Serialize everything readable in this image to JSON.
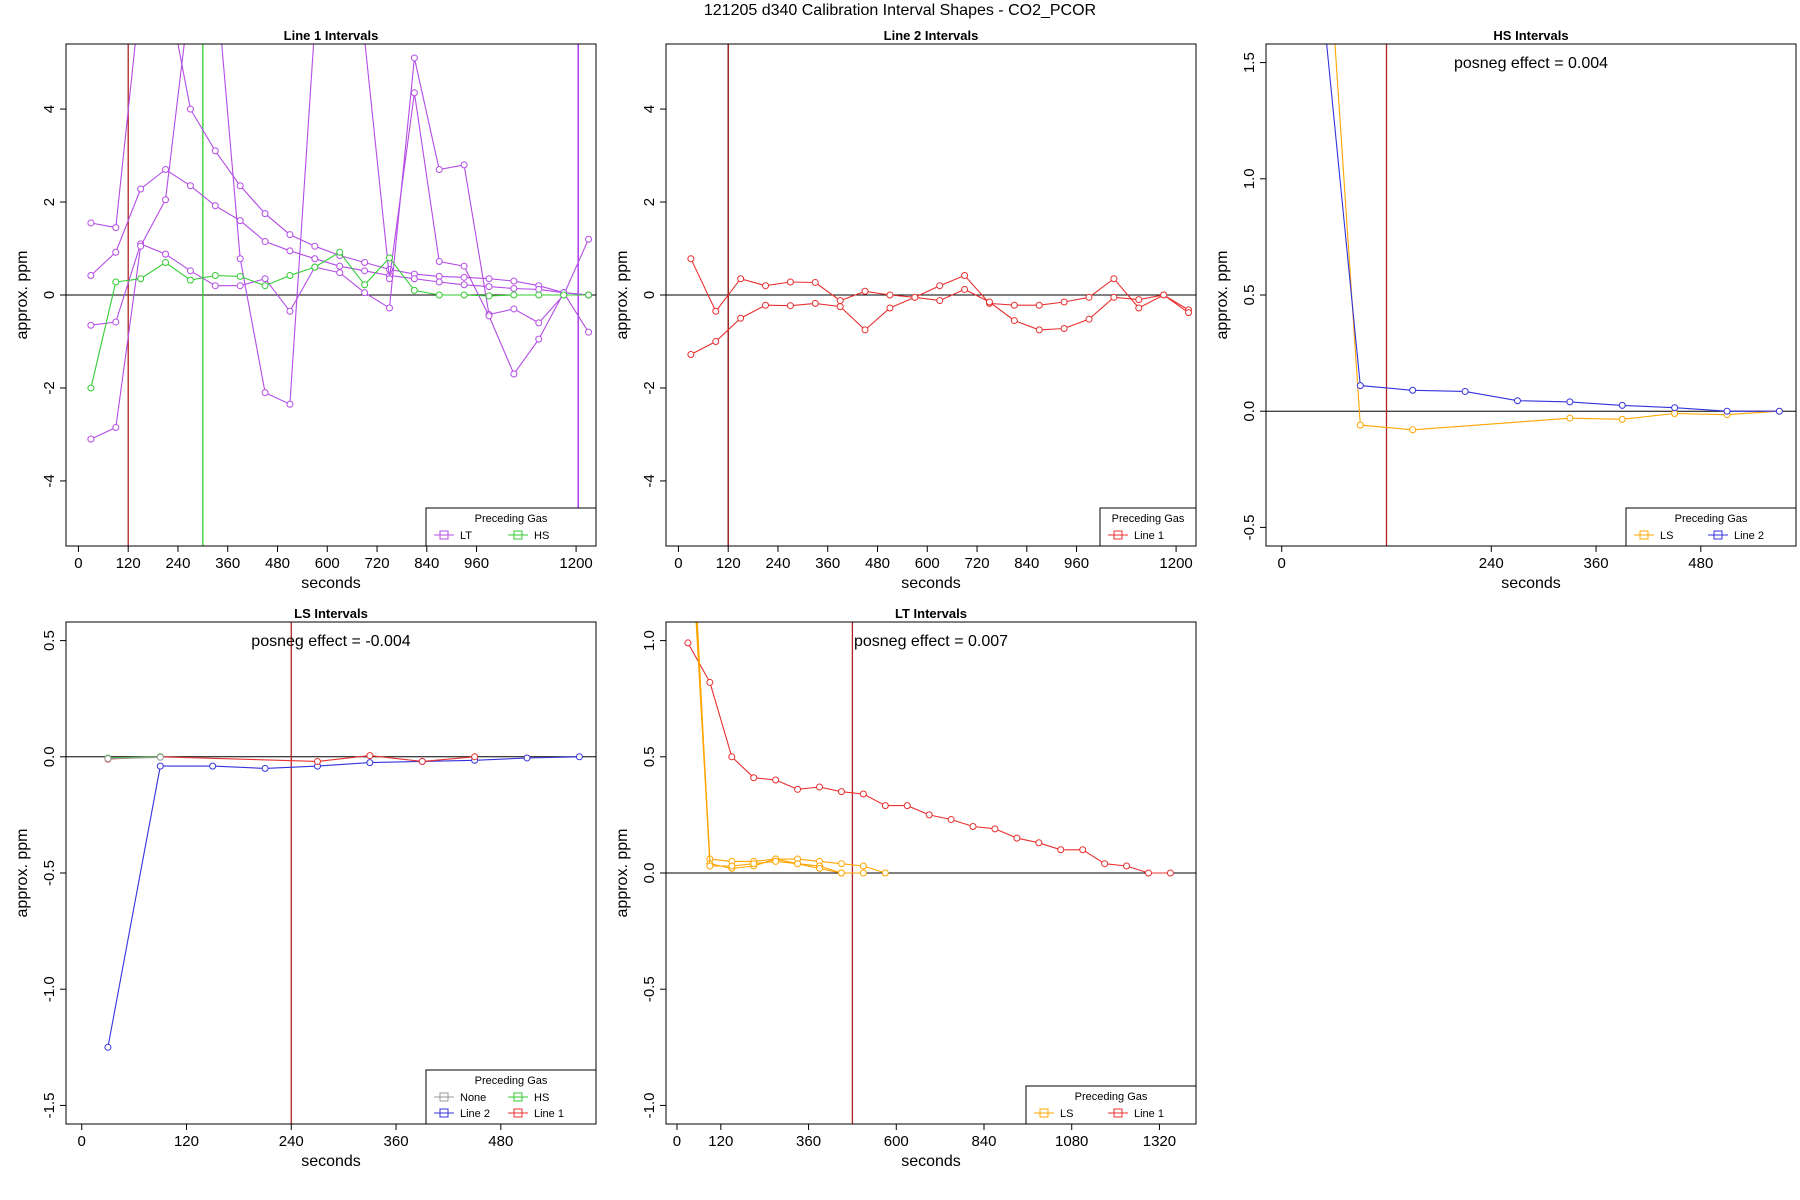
{
  "title": "121205  d340   Calibration Interval Shapes - CO2_PCOR",
  "chart_data": [
    {
      "type": "line",
      "title": "Line 1 Intervals",
      "xlabel": "seconds",
      "ylabel": "approx. ppm",
      "xlim": [
        -30,
        1248
      ],
      "ylim": [
        -5.4,
        5.4
      ],
      "xticks": [
        0,
        120,
        240,
        360,
        480,
        600,
        720,
        840,
        960,
        1200
      ],
      "xtick_labels": [
        "0",
        "120",
        "240",
        "360",
        "480",
        "600",
        "720",
        "840",
        "960",
        "1200"
      ],
      "yticks": [
        -4,
        -2,
        0,
        2,
        4
      ],
      "ytick_labels": [
        "-4",
        "-2",
        "0",
        "2",
        "4"
      ],
      "hline": 0,
      "vlines": [
        {
          "x": 120,
          "color": "#b22222"
        },
        {
          "x": 300,
          "color": "#33cc33"
        },
        {
          "x": 1205,
          "color": "#a020f0"
        }
      ],
      "legend": {
        "title": "Preceding Gas",
        "position": "bottom-right",
        "entries": [
          {
            "label": "LT",
            "color": "#b44ce6"
          },
          {
            "label": "HS",
            "color": "#33cc33"
          }
        ]
      },
      "series": [
        {
          "name": "LT",
          "color": "#b44ce6",
          "x": [
            30,
            90,
            150,
            210,
            270,
            330,
            390,
            450,
            510,
            570,
            630,
            690,
            750,
            810,
            870,
            930,
            990,
            1050,
            1110,
            1170,
            1230
          ],
          "y": [
            1.55,
            1.45,
            6.5,
            6.8,
            4.0,
            3.1,
            2.35,
            1.75,
            1.3,
            1.05,
            0.85,
            0.7,
            0.55,
            0.45,
            0.4,
            0.38,
            0.35,
            0.3,
            0.2,
            0.05,
            0.0
          ]
        },
        {
          "name": "LT",
          "color": "#b44ce6",
          "x": [
            30,
            90,
            150,
            210,
            270,
            330,
            390,
            450,
            510,
            570,
            630,
            690,
            750,
            810,
            870,
            930,
            990,
            1050,
            1110,
            1170,
            1230
          ],
          "y": [
            0.42,
            0.92,
            2.28,
            2.7,
            2.35,
            1.92,
            1.6,
            1.15,
            0.95,
            0.78,
            0.62,
            0.52,
            0.42,
            0.35,
            0.28,
            0.22,
            0.18,
            0.14,
            0.12,
            0.05,
            0.0
          ]
        },
        {
          "name": "LT",
          "color": "#b44ce6",
          "x": [
            30,
            90,
            150,
            210,
            270,
            330,
            390,
            450,
            510,
            570,
            630,
            690,
            750,
            810,
            870,
            930,
            990,
            1050,
            1110,
            1170,
            1230
          ],
          "y": [
            -0.65,
            -0.58,
            1.1,
            0.88,
            0.52,
            0.2,
            0.2,
            0.35,
            -0.35,
            0.6,
            0.48,
            0.05,
            -0.28,
            5.1,
            2.7,
            2.8,
            -0.42,
            -0.3,
            -0.6,
            0.0,
            1.2
          ]
        },
        {
          "name": "LT",
          "color": "#b44ce6",
          "x": [
            30,
            90,
            150,
            210,
            270,
            330,
            390,
            450,
            510,
            570,
            630,
            690,
            750,
            810,
            870,
            930,
            990,
            1050,
            1110,
            1170,
            1230
          ],
          "y": [
            -3.1,
            -2.85,
            1.05,
            2.05,
            6.5,
            7.0,
            0.78,
            -2.1,
            -2.35,
            5.8,
            6.5,
            5.5,
            0.35,
            4.35,
            0.72,
            0.62,
            -0.45,
            -1.7,
            -0.95,
            0.05,
            -0.8
          ]
        },
        {
          "name": "HS",
          "color": "#33cc33",
          "x": [
            30,
            90,
            150,
            210,
            270,
            330,
            390,
            450,
            510,
            570,
            630,
            690,
            750,
            810,
            870,
            930,
            990,
            1050,
            1110,
            1170,
            1230
          ],
          "y": [
            -2.0,
            0.28,
            0.35,
            0.7,
            0.32,
            0.42,
            0.4,
            0.2,
            0.42,
            0.6,
            0.92,
            0.22,
            0.8,
            0.1,
            0.0,
            0.0,
            -0.02,
            0.0,
            0.0,
            0.0,
            0.0
          ]
        }
      ]
    },
    {
      "type": "line",
      "title": "Line 2 Intervals",
      "xlabel": "seconds",
      "ylabel": "approx. ppm",
      "xlim": [
        -30,
        1248
      ],
      "ylim": [
        -5.4,
        5.4
      ],
      "xticks": [
        0,
        120,
        240,
        360,
        480,
        600,
        720,
        840,
        960,
        1200
      ],
      "xtick_labels": [
        "0",
        "120",
        "240",
        "360",
        "480",
        "600",
        "720",
        "840",
        "960",
        "1200"
      ],
      "yticks": [
        -4,
        -2,
        0,
        2,
        4
      ],
      "ytick_labels": [
        "-4",
        "-2",
        "0",
        "2",
        "4"
      ],
      "hline": 0,
      "vlines": [
        {
          "x": 120,
          "color": "#8b0000"
        }
      ],
      "legend": {
        "title": "Preceding Gas",
        "position": "bottom-right",
        "entries": [
          {
            "label": "Line 1",
            "color": "#e83030"
          }
        ]
      },
      "series": [
        {
          "name": "Line 1",
          "color": "#e83030",
          "x": [
            30,
            90,
            150,
            210,
            270,
            330,
            390,
            450,
            510,
            570,
            630,
            690,
            750,
            810,
            870,
            930,
            990,
            1050,
            1110,
            1170,
            1230
          ],
          "y": [
            0.78,
            -0.35,
            0.35,
            0.2,
            0.28,
            0.27,
            -0.12,
            0.08,
            0.0,
            -0.05,
            0.2,
            0.42,
            -0.18,
            -0.22,
            -0.22,
            -0.15,
            -0.05,
            0.35,
            -0.28,
            0.0,
            -0.32
          ]
        },
        {
          "name": "Line 1",
          "color": "#e83030",
          "x": [
            30,
            90,
            150,
            210,
            270,
            330,
            390,
            450,
            510,
            570,
            630,
            690,
            750,
            810,
            870,
            930,
            990,
            1050,
            1110,
            1170,
            1230
          ],
          "y": [
            -1.28,
            -1.0,
            -0.5,
            -0.22,
            -0.23,
            -0.18,
            -0.25,
            -0.75,
            -0.28,
            -0.05,
            -0.12,
            0.12,
            -0.15,
            -0.55,
            -0.75,
            -0.72,
            -0.52,
            -0.05,
            -0.1,
            -0.0,
            -0.38
          ]
        }
      ]
    },
    {
      "type": "line",
      "title": "HS Intervals",
      "xlabel": "seconds",
      "ylabel": "approx. ppm",
      "xlim": [
        -18,
        589
      ],
      "ylim": [
        -0.58,
        1.58
      ],
      "xticks": [
        0,
        240,
        360,
        480
      ],
      "xtick_labels": [
        "0",
        "240",
        "360",
        "480"
      ],
      "yticks": [
        -0.5,
        0.0,
        0.5,
        1.0,
        1.5
      ],
      "ytick_labels": [
        "-0.5",
        "0.0",
        "0.5",
        "1.0",
        "1.5"
      ],
      "hline": 0,
      "vlines": [
        {
          "x": 120,
          "color": "#b22222"
        }
      ],
      "annotation": "posneg effect = 0.004",
      "legend": {
        "title": "Preceding Gas",
        "position": "bottom-right",
        "entries": [
          {
            "label": "LS",
            "color": "#ffa500"
          },
          {
            "label": "Line 2",
            "color": "#3333dd"
          }
        ]
      },
      "series": [
        {
          "name": "LS",
          "color": "#ffa500",
          "x": [
            50,
            90,
            150,
            330,
            390,
            450,
            510,
            570
          ],
          "y": [
            2.2,
            -0.06,
            -0.08,
            -0.03,
            -0.035,
            -0.01,
            -0.015,
            0.0
          ]
        },
        {
          "name": "Line 2",
          "color": "#3333dd",
          "x": [
            30,
            90,
            150,
            210,
            270,
            330,
            390,
            450,
            510,
            570
          ],
          "y": [
            2.4,
            0.11,
            0.09,
            0.085,
            0.045,
            0.04,
            0.025,
            0.015,
            0.0,
            0.0
          ]
        }
      ]
    },
    {
      "type": "line",
      "title": "LS Intervals",
      "xlabel": "seconds",
      "ylabel": "approx. ppm",
      "xlim": [
        -18,
        589
      ],
      "ylim": [
        -1.58,
        0.58
      ],
      "xticks": [
        0,
        120,
        240,
        360,
        480
      ],
      "xtick_labels": [
        "0",
        "120",
        "240",
        "360",
        "480"
      ],
      "yticks": [
        -1.5,
        -1.0,
        -0.5,
        0.0,
        0.5
      ],
      "ytick_labels": [
        "-1.5",
        "-1.0",
        "-0.5",
        "0.0",
        "0.5"
      ],
      "hline": 0,
      "vlines": [
        {
          "x": 240,
          "color": "#b22222"
        }
      ],
      "annotation": "posneg effect = -0.004",
      "legend": {
        "title": "Preceding Gas",
        "position": "bottom-right",
        "entries": [
          {
            "label": "None",
            "color": "#999999"
          },
          {
            "label": "HS",
            "color": "#33cc33"
          },
          {
            "label": "Line 2",
            "color": "#3333dd"
          },
          {
            "label": "Line 1",
            "color": "#e83030"
          }
        ]
      },
      "series": [
        {
          "name": "Line 2",
          "color": "#3333dd",
          "x": [
            30,
            90,
            150,
            210,
            270,
            330,
            390,
            450,
            510,
            570
          ],
          "y": [
            -1.25,
            -0.04,
            -0.04,
            -0.05,
            -0.04,
            -0.025,
            -0.02,
            -0.015,
            -0.005,
            0.0
          ]
        },
        {
          "name": "Line 1",
          "color": "#e83030",
          "x": [
            30,
            90,
            270,
            330,
            390,
            450
          ],
          "y": [
            -0.01,
            0.0,
            -0.02,
            0.005,
            -0.02,
            0.0
          ]
        },
        {
          "name": "HS",
          "color": "#33cc33",
          "x": [
            30,
            90
          ],
          "y": [
            -0.005,
            0.0
          ]
        },
        {
          "name": "None",
          "color": "#999999",
          "x": [
            30,
            90
          ],
          "y": [
            -0.008,
            -0.002
          ]
        }
      ]
    },
    {
      "type": "line",
      "title": "LT Intervals",
      "xlabel": "seconds",
      "ylabel": "approx. ppm",
      "xlim": [
        -30,
        1420
      ],
      "ylim": [
        -1.08,
        1.08
      ],
      "xticks": [
        0,
        120,
        360,
        600,
        840,
        1080,
        1320
      ],
      "xtick_labels": [
        "0",
        "120",
        "360",
        "600",
        "840",
        "1080",
        "1320"
      ],
      "yticks": [
        -1.0,
        -0.5,
        0.0,
        0.5,
        1.0
      ],
      "ytick_labels": [
        "-1.0",
        "-0.5",
        "0.0",
        "0.5",
        "1.0"
      ],
      "hline": 0,
      "vlines": [
        {
          "x": 480,
          "color": "#b22222"
        }
      ],
      "annotation": "posneg effect = 0.007",
      "legend": {
        "title": "Preceding Gas",
        "position": "bottom-right",
        "entries": [
          {
            "label": "LS",
            "color": "#ffa500"
          },
          {
            "label": "Line 1",
            "color": "#e83030"
          }
        ]
      },
      "series": [
        {
          "name": "Line 1",
          "color": "#e83030",
          "x": [
            30,
            90,
            150,
            210,
            270,
            330,
            390,
            450,
            510,
            570,
            630,
            690,
            750,
            810,
            870,
            930,
            990,
            1050,
            1110,
            1170,
            1230,
            1290,
            1350
          ],
          "y": [
            0.99,
            0.82,
            0.5,
            0.41,
            0.4,
            0.36,
            0.37,
            0.35,
            0.34,
            0.29,
            0.29,
            0.25,
            0.23,
            0.2,
            0.19,
            0.15,
            0.13,
            0.1,
            0.1,
            0.04,
            0.03,
            0.0,
            0.0
          ]
        },
        {
          "name": "LS",
          "color": "#ffa500",
          "x": [
            50,
            90,
            150,
            210,
            270,
            330,
            390,
            450,
            510,
            570
          ],
          "y": [
            1.2,
            0.06,
            0.05,
            0.05,
            0.06,
            0.06,
            0.05,
            0.04,
            0.03,
            0.0
          ]
        },
        {
          "name": "LS",
          "color": "#ffa500",
          "x": [
            50,
            90,
            150,
            210,
            270,
            330,
            390,
            450,
            510
          ],
          "y": [
            1.15,
            0.04,
            0.02,
            0.03,
            0.06,
            0.04,
            0.03,
            0.0,
            0.0
          ]
        },
        {
          "name": "LS",
          "color": "#ffa500",
          "x": [
            55,
            90,
            150,
            210,
            270,
            330,
            390,
            450
          ],
          "y": [
            1.1,
            0.03,
            0.03,
            0.04,
            0.05,
            0.04,
            0.02,
            0.0
          ]
        }
      ]
    }
  ]
}
